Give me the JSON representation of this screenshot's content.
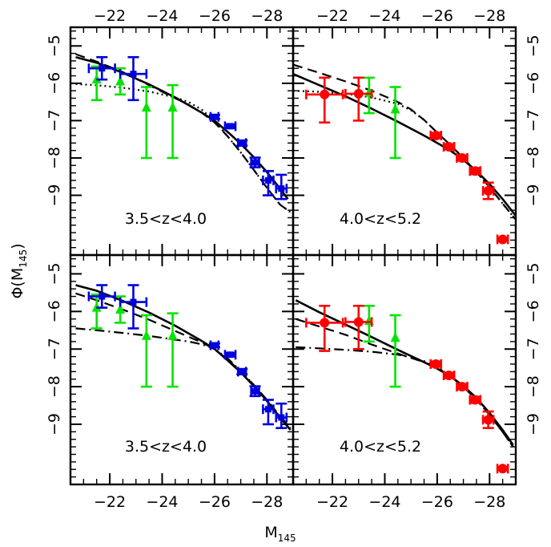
{
  "figure": {
    "ylabel": "Φ(M",
    "ylabel_sub": "145",
    "ylabel_close": ")",
    "xlabel": "M",
    "xlabel_sub": "145"
  },
  "chart_data": [
    {
      "type": "scatter",
      "panel": "top-left",
      "label": "3.5<z<4.0",
      "xlim": [
        -20.5,
        -29.0
      ],
      "ylim": [
        -4.5,
        -10.6
      ],
      "x_ticks": [
        -22,
        -24,
        -26,
        -28
      ],
      "y_ticks": [
        -5,
        -6,
        -7,
        -8,
        -9
      ],
      "series": [
        {
          "color": "#00e400",
          "marker": "triangle",
          "points": [
            {
              "x": -21.5,
              "y": -5.9,
              "ylo": -6.45,
              "yhi": -5.55
            },
            {
              "x": -22.4,
              "y": -5.95,
              "ylo": -6.3,
              "yhi": -5.6
            },
            {
              "x": -23.4,
              "y": -6.65,
              "ylo": -8.0,
              "yhi": -6.1
            },
            {
              "x": -24.4,
              "y": -6.65,
              "ylo": -8.0,
              "yhi": -6.05
            }
          ]
        },
        {
          "color": "#0000dd",
          "marker": "square",
          "points": [
            {
              "x": -21.7,
              "y": -5.6,
              "xlo": -21.2,
              "xhi": -22.2,
              "ylo": -5.9,
              "yhi": -5.3
            },
            {
              "x": -22.9,
              "y": -5.75,
              "xlo": -22.4,
              "xhi": -23.4,
              "ylo": -6.45,
              "yhi": -5.3
            },
            {
              "x": -26.0,
              "y": -6.9,
              "xlo": -25.85,
              "xhi": -26.15,
              "ylo": -6.95,
              "yhi": -6.85
            },
            {
              "x": -26.6,
              "y": -7.15,
              "xlo": -26.4,
              "xhi": -26.8,
              "ylo": -7.2,
              "yhi": -7.1
            },
            {
              "x": -27.05,
              "y": -7.6,
              "xlo": -26.9,
              "xhi": -27.2,
              "ylo": -7.67,
              "yhi": -7.53
            },
            {
              "x": -27.55,
              "y": -8.12,
              "xlo": -27.4,
              "xhi": -27.7,
              "ylo": -8.25,
              "yhi": -7.99
            },
            {
              "x": -28.05,
              "y": -8.6,
              "xlo": -27.85,
              "xhi": -28.25,
              "ylo": -9.0,
              "yhi": -8.35
            },
            {
              "x": -28.55,
              "y": -8.82,
              "xlo": -28.35,
              "xhi": -28.75,
              "ylo": -9.1,
              "yhi": -8.45
            }
          ]
        }
      ],
      "curves": [
        {
          "style": "solid",
          "x": [
            -20.7,
            -21.5,
            -22.5,
            -23.5,
            -24.5,
            -25.5,
            -26.0,
            -26.5,
            -27.0,
            -27.5,
            -28.0,
            -28.5,
            -28.8
          ],
          "y": [
            -5.3,
            -5.45,
            -5.72,
            -6.03,
            -6.38,
            -6.78,
            -7.0,
            -7.3,
            -7.62,
            -7.98,
            -8.38,
            -8.82,
            -9.1
          ]
        },
        {
          "style": "dashed",
          "x": [
            -20.7,
            -21.5,
            -22.5,
            -23.5,
            -24.5,
            -25.0,
            -25.5,
            -26.0,
            -26.5,
            -27.0,
            -27.5,
            -28.0,
            -28.5,
            -28.9
          ],
          "y": [
            -5.22,
            -5.42,
            -5.7,
            -6.05,
            -6.4,
            -6.57,
            -6.78,
            -7.05,
            -7.42,
            -7.85,
            -8.32,
            -8.8,
            -9.25,
            -9.45
          ]
        },
        {
          "style": "dotted",
          "x": [
            -20.7,
            -21.5,
            -22.5,
            -23.5,
            -24.5,
            -25.0,
            -25.5,
            -26.0,
            -26.5,
            -27.0,
            -27.5,
            -28.0,
            -28.5,
            -28.9
          ],
          "y": [
            -6.02,
            -6.05,
            -6.12,
            -6.22,
            -6.38,
            -6.5,
            -6.7,
            -7.0,
            -7.42,
            -7.85,
            -8.32,
            -8.8,
            -9.25,
            -9.45
          ]
        }
      ]
    },
    {
      "type": "scatter",
      "panel": "top-right",
      "label": "4.0<z<5.2",
      "xlim": [
        -20.5,
        -29.0
      ],
      "ylim": [
        -4.5,
        -10.6
      ],
      "x_ticks": [
        -22,
        -24,
        -26,
        -28
      ],
      "y_ticks": [
        -5,
        -6,
        -7,
        -8,
        -9
      ],
      "series": [
        {
          "color": "#00e400",
          "marker": "triangle",
          "points": [
            {
              "x": -23.4,
              "y": -6.25,
              "ylo": -6.8,
              "yhi": -5.85
            },
            {
              "x": -24.4,
              "y": -6.7,
              "ylo": -8.0,
              "yhi": -6.1
            }
          ]
        },
        {
          "color": "#ff0000",
          "marker": "circle",
          "points": [
            {
              "x": -21.7,
              "y": -6.3,
              "xlo": -21.0,
              "xhi": -22.4,
              "ylo": -7.05,
              "yhi": -5.85
            },
            {
              "x": -23.0,
              "y": -6.28,
              "xlo": -22.5,
              "xhi": -23.5,
              "ylo": -7.0,
              "yhi": -5.85
            },
            {
              "x": -25.95,
              "y": -7.4,
              "xlo": -25.75,
              "xhi": -26.15,
              "ylo": -7.47,
              "yhi": -7.33
            },
            {
              "x": -26.45,
              "y": -7.7,
              "xlo": -26.25,
              "xhi": -26.65,
              "ylo": -7.77,
              "yhi": -7.63
            },
            {
              "x": -26.95,
              "y": -8.0,
              "xlo": -26.75,
              "xhi": -27.15,
              "ylo": -8.07,
              "yhi": -7.93
            },
            {
              "x": -27.45,
              "y": -8.35,
              "xlo": -27.25,
              "xhi": -27.65,
              "ylo": -8.43,
              "yhi": -8.27
            },
            {
              "x": -27.95,
              "y": -8.88,
              "xlo": -27.75,
              "xhi": -28.15,
              "ylo": -9.1,
              "yhi": -8.66
            },
            {
              "x": -28.5,
              "y": -10.18,
              "xlo": -28.3,
              "xhi": -28.7,
              "ylo": -10.22,
              "yhi": -10.14
            }
          ]
        }
      ],
      "curves": [
        {
          "style": "solid",
          "x": [
            -20.5,
            -21.5,
            -22.5,
            -23.5,
            -24.5,
            -25.5,
            -26.0,
            -26.5,
            -27.0,
            -27.5,
            -28.0,
            -28.5,
            -29.0
          ],
          "y": [
            -5.75,
            -6.05,
            -6.35,
            -6.68,
            -7.03,
            -7.4,
            -7.6,
            -7.8,
            -8.05,
            -8.35,
            -8.7,
            -9.1,
            -9.55
          ]
        },
        {
          "style": "dashed",
          "x": [
            -20.5,
            -21.5,
            -22.5,
            -23.5,
            -24.5,
            -25.0,
            -25.5,
            -26.0,
            -26.5,
            -27.0,
            -27.5,
            -28.0,
            -28.5,
            -29.0
          ],
          "y": [
            -5.5,
            -5.72,
            -5.95,
            -6.2,
            -6.5,
            -6.7,
            -6.98,
            -7.32,
            -7.65,
            -8.0,
            -8.38,
            -8.78,
            -9.22,
            -9.65
          ]
        },
        {
          "style": "dotted",
          "x": [
            -20.5,
            -21.5,
            -22.5,
            -23.5,
            -24.5,
            -25.0,
            -25.5,
            -26.0,
            -26.5,
            -27.0,
            -27.5,
            -28.0,
            -28.5,
            -29.0
          ],
          "y": [
            -6.2,
            -6.23,
            -6.28,
            -6.38,
            -6.55,
            -6.72,
            -6.98,
            -7.32,
            -7.65,
            -8.0,
            -8.38,
            -8.78,
            -9.22,
            -9.65
          ]
        }
      ]
    },
    {
      "type": "scatter",
      "panel": "bottom-left",
      "label": "3.5<z<4.0",
      "xlim": [
        -20.5,
        -29.0
      ],
      "ylim": [
        -4.5,
        -10.6
      ],
      "x_ticks": [
        -22,
        -24,
        -26,
        -28
      ],
      "y_ticks": [
        -5,
        -6,
        -7,
        -8,
        -9
      ],
      "series": [
        {
          "color": "#00e400",
          "marker": "triangle",
          "points": [
            {
              "x": -21.5,
              "y": -5.9,
              "ylo": -6.45,
              "yhi": -5.55
            },
            {
              "x": -22.4,
              "y": -5.95,
              "ylo": -6.3,
              "yhi": -5.6
            },
            {
              "x": -23.4,
              "y": -6.65,
              "ylo": -8.0,
              "yhi": -6.1
            },
            {
              "x": -24.4,
              "y": -6.65,
              "ylo": -8.0,
              "yhi": -6.05
            }
          ]
        },
        {
          "color": "#0000dd",
          "marker": "square",
          "points": [
            {
              "x": -21.7,
              "y": -5.6,
              "xlo": -21.2,
              "xhi": -22.2,
              "ylo": -5.9,
              "yhi": -5.3
            },
            {
              "x": -22.9,
              "y": -5.75,
              "xlo": -22.4,
              "xhi": -23.4,
              "ylo": -6.45,
              "yhi": -5.3
            },
            {
              "x": -26.0,
              "y": -6.9,
              "xlo": -25.85,
              "xhi": -26.15,
              "ylo": -6.95,
              "yhi": -6.85
            },
            {
              "x": -26.6,
              "y": -7.15,
              "xlo": -26.4,
              "xhi": -26.8,
              "ylo": -7.2,
              "yhi": -7.1
            },
            {
              "x": -27.05,
              "y": -7.6,
              "xlo": -26.9,
              "xhi": -27.2,
              "ylo": -7.67,
              "yhi": -7.53
            },
            {
              "x": -27.55,
              "y": -8.12,
              "xlo": -27.4,
              "xhi": -27.7,
              "ylo": -8.25,
              "yhi": -7.99
            },
            {
              "x": -28.05,
              "y": -8.6,
              "xlo": -27.85,
              "xhi": -28.25,
              "ylo": -9.0,
              "yhi": -8.35
            },
            {
              "x": -28.55,
              "y": -8.82,
              "xlo": -28.35,
              "xhi": -28.75,
              "ylo": -9.1,
              "yhi": -8.45
            }
          ]
        }
      ],
      "curves": [
        {
          "style": "solid",
          "x": [
            -20.7,
            -21.5,
            -22.5,
            -23.5,
            -24.5,
            -25.5,
            -26.0,
            -26.5,
            -27.0,
            -27.5,
            -28.0,
            -28.5,
            -28.9
          ],
          "y": [
            -5.3,
            -5.45,
            -5.72,
            -6.03,
            -6.38,
            -6.78,
            -7.0,
            -7.3,
            -7.62,
            -7.98,
            -8.38,
            -8.82,
            -9.15
          ]
        },
        {
          "style": "dashed",
          "x": [
            -20.7,
            -21.5,
            -22.5,
            -23.5,
            -24.5,
            -25.5,
            -26.0,
            -26.5,
            -27.0,
            -27.5,
            -28.0,
            -28.5,
            -28.9
          ],
          "y": [
            -5.52,
            -5.7,
            -5.95,
            -6.22,
            -6.52,
            -6.82,
            -7.0,
            -7.28,
            -7.6,
            -7.95,
            -8.35,
            -8.78,
            -9.1
          ]
        },
        {
          "style": "dashdot",
          "x": [
            -20.7,
            -21.5,
            -22.5,
            -23.5,
            -24.5,
            -25.0,
            -25.5,
            -26.0,
            -26.5,
            -27.0,
            -27.5,
            -28.0,
            -28.5,
            -28.9
          ],
          "y": [
            -6.45,
            -6.5,
            -6.57,
            -6.65,
            -6.75,
            -6.8,
            -6.87,
            -7.0,
            -7.25,
            -7.58,
            -7.95,
            -8.38,
            -8.8,
            -9.1
          ]
        }
      ]
    },
    {
      "type": "scatter",
      "panel": "bottom-right",
      "label": "4.0<z<5.2",
      "xlim": [
        -20.5,
        -29.0
      ],
      "ylim": [
        -4.5,
        -10.6
      ],
      "x_ticks": [
        -22,
        -24,
        -26,
        -28
      ],
      "y_ticks": [
        -5,
        -6,
        -7,
        -8,
        -9
      ],
      "series": [
        {
          "color": "#00e400",
          "marker": "triangle",
          "points": [
            {
              "x": -23.4,
              "y": -6.25,
              "ylo": -6.8,
              "yhi": -5.85
            },
            {
              "x": -24.4,
              "y": -6.7,
              "ylo": -8.0,
              "yhi": -6.1
            }
          ]
        },
        {
          "color": "#ff0000",
          "marker": "circle",
          "points": [
            {
              "x": -21.7,
              "y": -6.3,
              "xlo": -21.0,
              "xhi": -22.4,
              "ylo": -7.05,
              "yhi": -5.85
            },
            {
              "x": -23.0,
              "y": -6.28,
              "xlo": -22.5,
              "xhi": -23.5,
              "ylo": -7.0,
              "yhi": -5.85
            },
            {
              "x": -25.95,
              "y": -7.4,
              "xlo": -25.75,
              "xhi": -26.15,
              "ylo": -7.47,
              "yhi": -7.33
            },
            {
              "x": -26.45,
              "y": -7.7,
              "xlo": -26.25,
              "xhi": -26.65,
              "ylo": -7.77,
              "yhi": -7.63
            },
            {
              "x": -26.95,
              "y": -8.0,
              "xlo": -26.75,
              "xhi": -27.15,
              "ylo": -8.07,
              "yhi": -7.93
            },
            {
              "x": -27.45,
              "y": -8.35,
              "xlo": -27.25,
              "xhi": -27.65,
              "ylo": -8.43,
              "yhi": -8.27
            },
            {
              "x": -27.95,
              "y": -8.88,
              "xlo": -27.75,
              "xhi": -28.15,
              "ylo": -9.1,
              "yhi": -8.66
            },
            {
              "x": -28.5,
              "y": -10.18,
              "xlo": -28.3,
              "xhi": -28.7,
              "ylo": -10.22,
              "yhi": -10.14
            }
          ]
        }
      ],
      "curves": [
        {
          "style": "solid",
          "x": [
            -20.6,
            -21.5,
            -22.5,
            -23.5,
            -24.5,
            -25.5,
            -26.0,
            -26.5,
            -27.0,
            -27.5,
            -28.0,
            -28.5,
            -28.9
          ],
          "y": [
            -5.7,
            -6.02,
            -6.35,
            -6.68,
            -7.02,
            -7.35,
            -7.52,
            -7.72,
            -7.98,
            -8.3,
            -8.7,
            -9.15,
            -9.55
          ]
        },
        {
          "style": "dashed",
          "x": [
            -20.6,
            -21.5,
            -22.5,
            -23.5,
            -24.5,
            -25.5,
            -26.0,
            -26.5,
            -27.0,
            -27.5,
            -28.0,
            -28.5,
            -28.9
          ],
          "y": [
            -6.2,
            -6.4,
            -6.62,
            -6.88,
            -7.12,
            -7.35,
            -7.5,
            -7.72,
            -8.0,
            -8.35,
            -8.75,
            -9.2,
            -9.6
          ]
        },
        {
          "style": "dashdot",
          "x": [
            -20.6,
            -21.5,
            -22.5,
            -23.5,
            -24.5,
            -25.0,
            -25.5,
            -26.0,
            -26.5,
            -27.0,
            -27.5,
            -28.0,
            -28.5,
            -28.9
          ],
          "y": [
            -6.95,
            -6.98,
            -7.02,
            -7.07,
            -7.15,
            -7.22,
            -7.32,
            -7.48,
            -7.72,
            -8.0,
            -8.35,
            -8.75,
            -9.2,
            -9.6
          ]
        }
      ]
    }
  ]
}
